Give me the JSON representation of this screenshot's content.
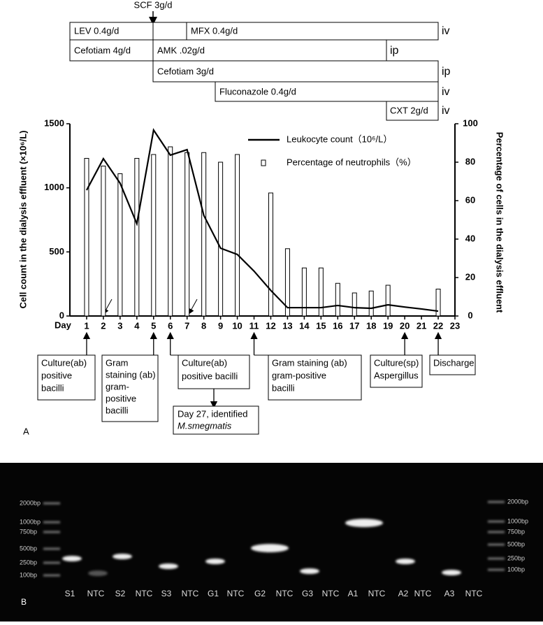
{
  "panel_a": "A",
  "regimen": {
    "scf": "SCF 3g/d",
    "boxes": [
      "LEV 0.4g/d",
      "MFX 0.4g/d",
      "Cefotiam 4g/d",
      "AMK .02g/d",
      "Cefotiam 3g/d",
      "Fluconazole 0.4g/d",
      "CXT 2g/d"
    ],
    "routes": [
      "iv",
      "ip",
      "ip",
      "iv",
      "iv"
    ]
  },
  "chart_data": {
    "type": "bar",
    "x_label": "Day",
    "y_label": "Cell count in the dialysis effluent (×10⁶/L)",
    "y2_label": "Percentage of cells in the dialysis effluent",
    "x": [
      1,
      2,
      3,
      4,
      5,
      6,
      7,
      8,
      9,
      10,
      11,
      12,
      13,
      14,
      15,
      16,
      17,
      18,
      19,
      20,
      21,
      22,
      23
    ],
    "xlim": [
      0,
      23
    ],
    "xticks": [
      1,
      2,
      3,
      4,
      5,
      6,
      7,
      8,
      9,
      10,
      11,
      12,
      13,
      14,
      15,
      16,
      17,
      18,
      19,
      20,
      21,
      22,
      23
    ],
    "ylim": [
      0,
      1500
    ],
    "yticks": [
      0,
      500,
      1000,
      1500
    ],
    "y2lim": [
      0,
      100
    ],
    "y2ticks": [
      0,
      20,
      40,
      60,
      80,
      100
    ],
    "series": [
      {
        "name": "Leukocyte count（10⁶/L）",
        "type": "line",
        "color": "#000000",
        "values": [
          982,
          1227,
          1036,
          720,
          1451,
          1255,
          1298,
          785,
          529,
          480,
          350,
          200,
          65,
          65,
          65,
          82,
          65,
          60,
          87,
          70,
          55,
          38,
          null
        ]
      },
      {
        "name": "Percentage of neutrophils（%）",
        "type": "bar",
        "axis": "y2",
        "color": "#ffffff",
        "values": [
          82,
          78,
          74,
          82,
          84,
          88,
          85,
          85,
          80,
          84,
          null,
          64,
          35,
          25,
          25,
          17,
          12,
          13,
          16,
          null,
          null,
          14,
          null
        ]
      }
    ]
  },
  "annotations": [
    {
      "day": 1,
      "lines": [
        "Culture(ab)",
        "positive",
        "bacilli"
      ]
    },
    {
      "day": 5,
      "lines": [
        "Gram",
        "staining (ab)",
        "gram-",
        "positive",
        "bacilli"
      ]
    },
    {
      "day": 6,
      "lines": [
        "Culture(ab)",
        "positive bacilli"
      ],
      "followup": [
        "Day 27, identified",
        "M.smegmatis"
      ]
    },
    {
      "day": 11,
      "lines": [
        "Gram staining (ab)",
        "gram-positive",
        "bacilli"
      ]
    },
    {
      "day": 20,
      "lines": [
        "Culture(sp)",
        "Aspergillus"
      ]
    },
    {
      "day": 22,
      "lines": [
        "Discharge"
      ]
    }
  ],
  "gel": {
    "panel_label": "B",
    "ladder_left": [
      "2000bp",
      "1000bp",
      "750bp",
      "500bp",
      "250bp",
      "100bp"
    ],
    "ladder_right": [
      "2000bp",
      "1000bp",
      "750bp",
      "500bp",
      "250bp",
      "100bp"
    ],
    "lanes": [
      "S1",
      "NTC",
      "S2",
      "NTC",
      "S3",
      "NTC",
      "G1",
      "NTC",
      "G2",
      "NTC",
      "G3",
      "NTC",
      "A1",
      "NTC",
      "A2",
      "NTC",
      "A3",
      "NTC"
    ]
  }
}
